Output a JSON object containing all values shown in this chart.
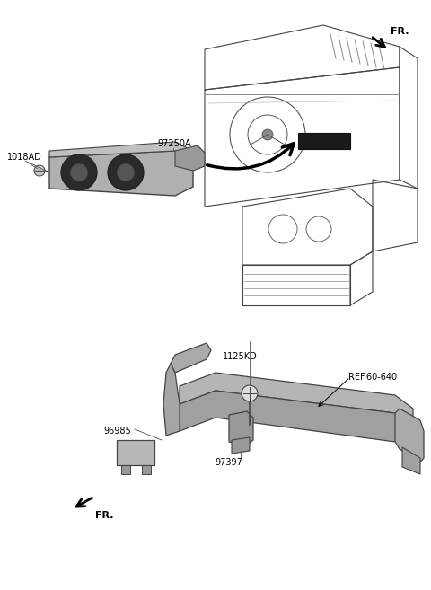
{
  "bg_color": "#ffffff",
  "fig_w": 4.8,
  "fig_h": 6.57,
  "dpi": 100,
  "top": {
    "fr_label": "FR.",
    "label_97250A": "97250A",
    "label_1018AD": "1018AD"
  },
  "bottom": {
    "fr_label": "FR.",
    "label_1125KD": "1125KD",
    "label_96985": "96985",
    "label_97397": "97397",
    "label_ref": "REF.60-640"
  }
}
